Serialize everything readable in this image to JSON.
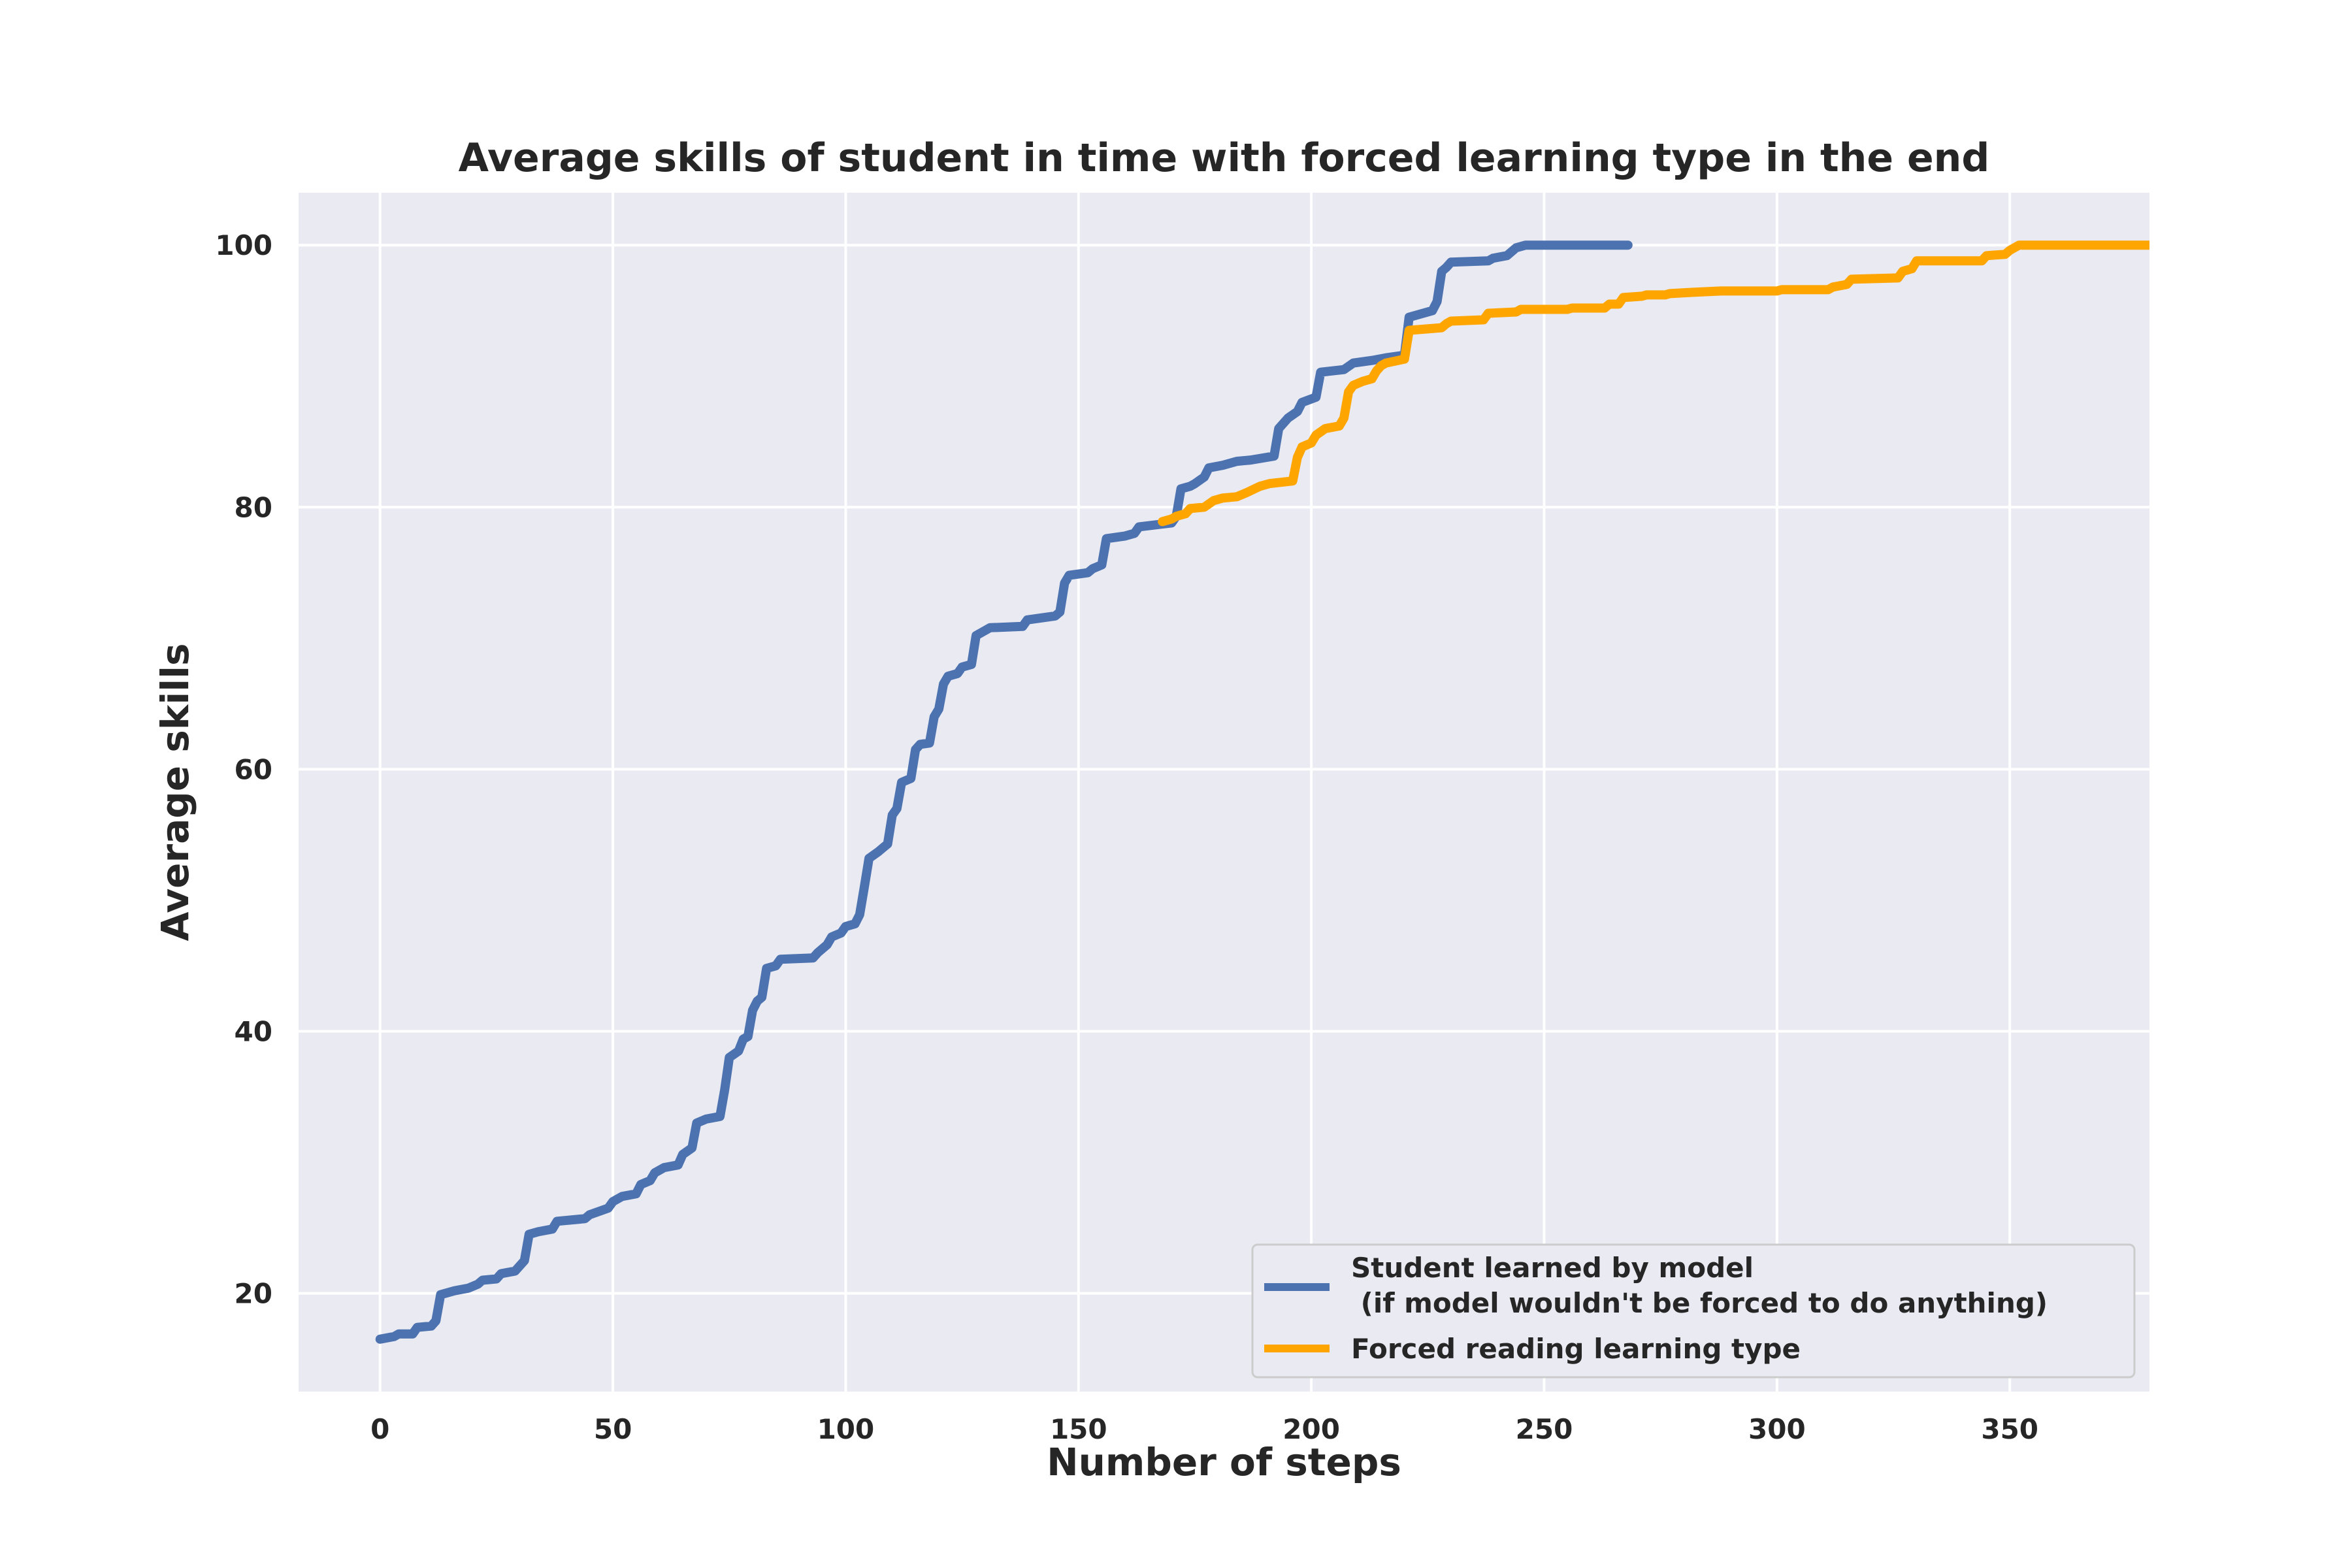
{
  "chart_data": {
    "type": "line",
    "title": "Average skills of student in time with forced learning type in the end",
    "xlabel": "Number of steps",
    "ylabel": "Average skills",
    "xlim": [
      -17.5,
      380
    ],
    "ylim": [
      12.5,
      104
    ],
    "xticks": [
      0,
      50,
      100,
      150,
      200,
      250,
      300,
      350
    ],
    "yticks": [
      20,
      40,
      60,
      80,
      100
    ],
    "grid": true,
    "legend_position": "bottom-right",
    "colors": {
      "plot_bg": "#eaeaf2",
      "grid": "#ffffff",
      "text": "#262626"
    },
    "series": [
      {
        "name": "Student learned by model\n (if model wouldn't be forced to do anything)",
        "color": "#4c72b0",
        "points": [
          [
            0,
            16.5
          ],
          [
            3,
            16.7
          ],
          [
            4,
            16.9
          ],
          [
            7,
            16.9
          ],
          [
            8,
            17.4
          ],
          [
            11,
            17.5
          ],
          [
            12,
            17.9
          ],
          [
            13,
            19.9
          ],
          [
            16,
            20.2
          ],
          [
            19,
            20.4
          ],
          [
            21,
            20.7
          ],
          [
            22,
            21.0
          ],
          [
            25,
            21.1
          ],
          [
            26,
            21.5
          ],
          [
            29,
            21.7
          ],
          [
            31,
            22.5
          ],
          [
            32,
            24.5
          ],
          [
            34,
            24.7
          ],
          [
            37,
            24.9
          ],
          [
            38,
            25.5
          ],
          [
            44,
            25.7
          ],
          [
            45,
            26.0
          ],
          [
            49,
            26.5
          ],
          [
            50,
            27.0
          ],
          [
            52,
            27.4
          ],
          [
            55,
            27.6
          ],
          [
            56,
            28.3
          ],
          [
            58,
            28.6
          ],
          [
            59,
            29.2
          ],
          [
            61,
            29.6
          ],
          [
            64,
            29.8
          ],
          [
            65,
            30.6
          ],
          [
            67,
            31.1
          ],
          [
            68,
            33.0
          ],
          [
            70,
            33.3
          ],
          [
            73,
            33.5
          ],
          [
            74,
            35.5
          ],
          [
            75,
            38.0
          ],
          [
            77,
            38.5
          ],
          [
            78,
            39.4
          ],
          [
            79,
            39.6
          ],
          [
            80,
            41.6
          ],
          [
            81,
            42.3
          ],
          [
            82,
            42.6
          ],
          [
            83,
            44.8
          ],
          [
            85,
            45.0
          ],
          [
            86,
            45.5
          ],
          [
            93,
            45.6
          ],
          [
            94,
            46.0
          ],
          [
            96,
            46.6
          ],
          [
            97,
            47.2
          ],
          [
            99,
            47.5
          ],
          [
            100,
            48.0
          ],
          [
            102,
            48.2
          ],
          [
            103,
            48.9
          ],
          [
            104,
            51.0
          ],
          [
            105,
            53.2
          ],
          [
            107,
            53.7
          ],
          [
            108,
            54.0
          ],
          [
            109,
            54.3
          ],
          [
            110,
            56.5
          ],
          [
            111,
            57.0
          ],
          [
            112,
            59.0
          ],
          [
            114,
            59.3
          ],
          [
            115,
            61.5
          ],
          [
            116,
            61.9
          ],
          [
            118,
            62.0
          ],
          [
            119,
            64.0
          ],
          [
            120,
            64.6
          ],
          [
            121,
            66.5
          ],
          [
            122,
            67.1
          ],
          [
            124,
            67.3
          ],
          [
            125,
            67.8
          ],
          [
            127,
            68.0
          ],
          [
            128,
            70.2
          ],
          [
            130,
            70.6
          ],
          [
            131,
            70.8
          ],
          [
            138,
            70.9
          ],
          [
            139,
            71.4
          ],
          [
            145,
            71.7
          ],
          [
            146,
            72.0
          ],
          [
            147,
            74.2
          ],
          [
            148,
            74.8
          ],
          [
            152,
            75.0
          ],
          [
            153,
            75.3
          ],
          [
            155,
            75.6
          ],
          [
            156,
            77.6
          ],
          [
            160,
            77.8
          ],
          [
            162,
            78.0
          ],
          [
            163,
            78.5
          ],
          [
            170,
            78.8
          ],
          [
            171,
            79.3
          ],
          [
            172,
            81.4
          ],
          [
            174,
            81.6
          ],
          [
            175,
            81.8
          ],
          [
            177,
            82.3
          ],
          [
            178,
            83.0
          ],
          [
            181,
            83.2
          ],
          [
            182,
            83.3
          ],
          [
            184,
            83.5
          ],
          [
            187,
            83.6
          ],
          [
            192,
            83.9
          ],
          [
            193,
            86.0
          ],
          [
            195,
            86.8
          ],
          [
            197,
            87.3
          ],
          [
            198,
            88.0
          ],
          [
            201,
            88.4
          ],
          [
            202,
            90.3
          ],
          [
            207,
            90.5
          ],
          [
            209,
            91.0
          ],
          [
            213,
            91.2
          ],
          [
            216,
            91.4
          ],
          [
            220,
            91.6
          ],
          [
            221,
            94.5
          ],
          [
            223,
            94.7
          ],
          [
            226,
            95.0
          ],
          [
            227,
            95.7
          ],
          [
            228,
            98.0
          ],
          [
            229,
            98.3
          ],
          [
            230,
            98.7
          ],
          [
            238,
            98.8
          ],
          [
            239,
            99.0
          ],
          [
            242,
            99.2
          ],
          [
            244,
            99.8
          ],
          [
            246,
            100.0
          ],
          [
            268,
            100.0
          ]
        ]
      },
      {
        "name": "Forced reading learning type",
        "color": "#ffa500",
        "points": [
          [
            168,
            78.9
          ],
          [
            170,
            79.1
          ],
          [
            171,
            79.3
          ],
          [
            173,
            79.5
          ],
          [
            174,
            79.9
          ],
          [
            177,
            80.0
          ],
          [
            179,
            80.5
          ],
          [
            181,
            80.7
          ],
          [
            184,
            80.8
          ],
          [
            186,
            81.1
          ],
          [
            189,
            81.6
          ],
          [
            191,
            81.8
          ],
          [
            196,
            82.0
          ],
          [
            197,
            83.8
          ],
          [
            198,
            84.6
          ],
          [
            200,
            84.9
          ],
          [
            201,
            85.5
          ],
          [
            203,
            86.0
          ],
          [
            206,
            86.2
          ],
          [
            207,
            86.8
          ],
          [
            208,
            88.8
          ],
          [
            209,
            89.3
          ],
          [
            211,
            89.6
          ],
          [
            213,
            89.8
          ],
          [
            214,
            90.4
          ],
          [
            215,
            90.8
          ],
          [
            216,
            91.0
          ],
          [
            220,
            91.3
          ],
          [
            221,
            93.5
          ],
          [
            228,
            93.7
          ],
          [
            229,
            94.0
          ],
          [
            230,
            94.2
          ],
          [
            237,
            94.3
          ],
          [
            238,
            94.8
          ],
          [
            244,
            94.9
          ],
          [
            245,
            95.1
          ],
          [
            255,
            95.1
          ],
          [
            256,
            95.2
          ],
          [
            263,
            95.2
          ],
          [
            264,
            95.5
          ],
          [
            266,
            95.5
          ],
          [
            267,
            96.0
          ],
          [
            271,
            96.1
          ],
          [
            272,
            96.2
          ],
          [
            276,
            96.2
          ],
          [
            277,
            96.3
          ],
          [
            282,
            96.4
          ],
          [
            288,
            96.5
          ],
          [
            300,
            96.5
          ],
          [
            301,
            96.6
          ],
          [
            311,
            96.6
          ],
          [
            312,
            96.8
          ],
          [
            315,
            97.0
          ],
          [
            316,
            97.4
          ],
          [
            326,
            97.5
          ],
          [
            327,
            98.0
          ],
          [
            329,
            98.2
          ],
          [
            330,
            98.8
          ],
          [
            344,
            98.8
          ],
          [
            345,
            99.2
          ],
          [
            349,
            99.3
          ],
          [
            350,
            99.6
          ],
          [
            352,
            100.0
          ],
          [
            380,
            100.0
          ]
        ]
      }
    ]
  }
}
